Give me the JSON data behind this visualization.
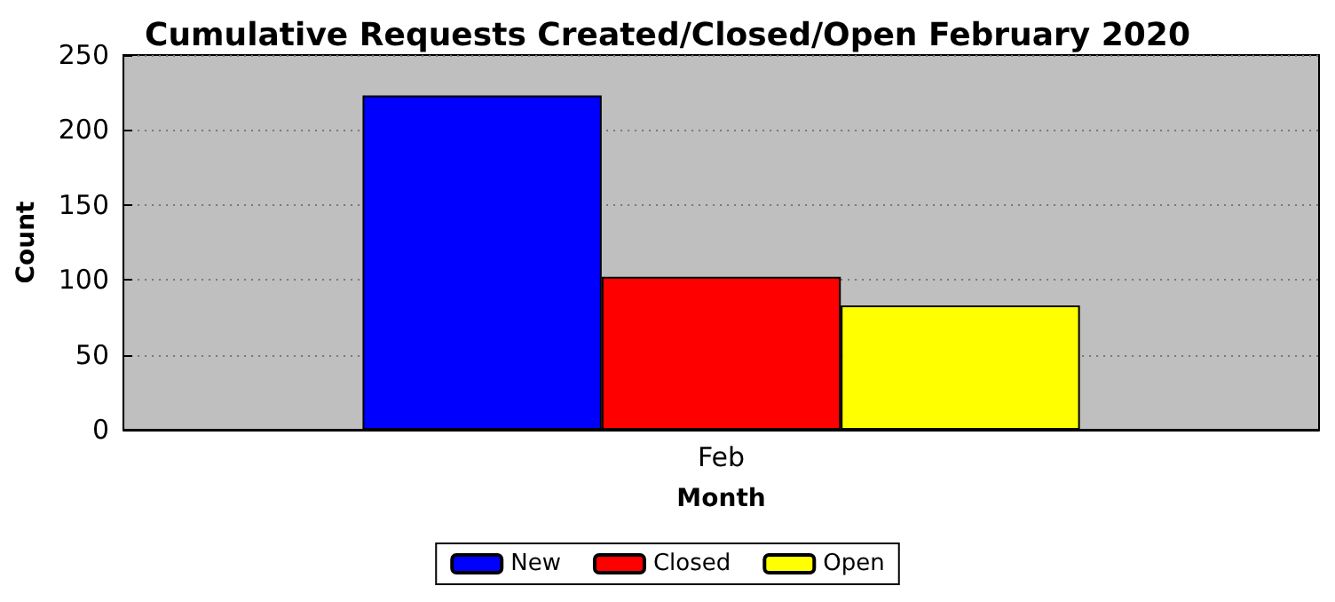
{
  "chart_data": {
    "type": "bar",
    "title": "Cumulative Requests Created/Closed/Open February 2020",
    "xlabel": "Month",
    "ylabel": "Count",
    "categories": [
      "Feb"
    ],
    "series": [
      {
        "name": "New",
        "color": "#0000ff",
        "values": [
          223
        ]
      },
      {
        "name": "Closed",
        "color": "#ff0000",
        "values": [
          102
        ]
      },
      {
        "name": "Open",
        "color": "#ffff00",
        "values": [
          83
        ]
      }
    ],
    "ylim": [
      0,
      250
    ],
    "yticks": [
      0,
      50,
      100,
      150,
      200,
      250
    ],
    "grid": "y",
    "legend": "bottom"
  }
}
